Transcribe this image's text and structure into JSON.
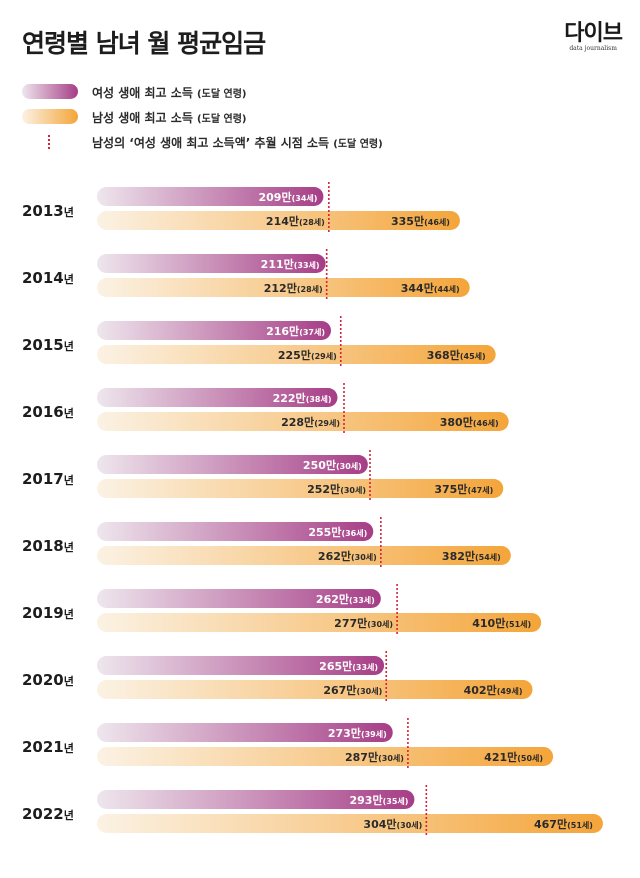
{
  "title": "연령별 남녀 월 평균임금",
  "logo": {
    "mark": "다이브",
    "sub": "data journalism"
  },
  "legend": {
    "women": {
      "label": "여성 생애 최고 소득",
      "sub": "(도달 연령)"
    },
    "men": {
      "label": "남성 생애 최고 소득",
      "sub": "(도달 연령)"
    },
    "marker": {
      "label": "남성의 ‘여성 생애 최고 소득액’ 추월 시점 소득",
      "sub": "(도달 연령)"
    }
  },
  "colors": {
    "women_start": "#eee6ed",
    "women_end": "#a63d86",
    "men_start": "#fbf2e4",
    "men_end": "#f4a53a",
    "marker": "#d4233b"
  },
  "chart_data": {
    "type": "bar",
    "title": "연령별 남녀 월 평균임금",
    "unit": "만",
    "year_suffix": "년",
    "age_suffix": "세",
    "xlim": [
      0,
      480
    ],
    "categories": [
      "2013",
      "2014",
      "2015",
      "2016",
      "2017",
      "2018",
      "2019",
      "2020",
      "2021",
      "2022"
    ],
    "series": [
      {
        "name": "여성 생애 최고 소득",
        "values": [
          209,
          211,
          216,
          222,
          250,
          255,
          262,
          265,
          273,
          293
        ],
        "ages": [
          34,
          33,
          37,
          38,
          30,
          36,
          33,
          33,
          39,
          35
        ]
      },
      {
        "name": "남성의 여성 생애 최고 소득액 추월 시점 소득",
        "values": [
          214,
          212,
          225,
          228,
          252,
          262,
          277,
          267,
          287,
          304
        ],
        "ages": [
          28,
          28,
          29,
          29,
          30,
          30,
          30,
          30,
          30,
          30
        ]
      },
      {
        "name": "남성 생애 최고 소득",
        "values": [
          335,
          344,
          368,
          380,
          375,
          382,
          410,
          402,
          421,
          467
        ],
        "ages": [
          46,
          44,
          45,
          46,
          47,
          54,
          51,
          49,
          50,
          51
        ]
      }
    ]
  }
}
